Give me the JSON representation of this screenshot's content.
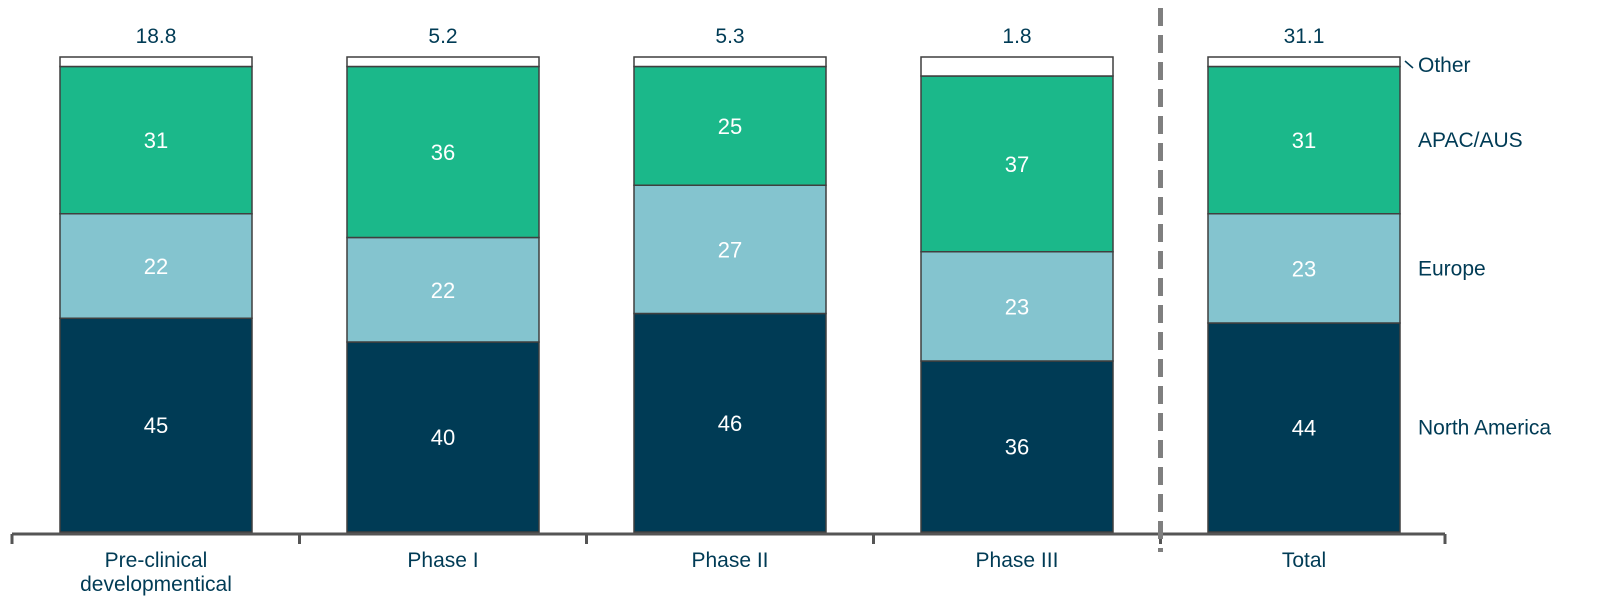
{
  "chart_data": {
    "type": "bar",
    "stacked": true,
    "normalized": true,
    "categories": [
      [
        "Pre-clinical",
        "developmentical"
      ],
      [
        "Phase I"
      ],
      [
        "Phase II"
      ],
      [
        "Phase III"
      ],
      [
        "Total"
      ]
    ],
    "totals": [
      "18.8",
      "5.2",
      "5.3",
      "1.8",
      "31.1"
    ],
    "series": [
      {
        "name": "North America",
        "color": "#003b55",
        "values": [
          45,
          40,
          46,
          36,
          44
        ]
      },
      {
        "name": "Europe",
        "color": "#84c4cf",
        "values": [
          22,
          22,
          27,
          23,
          23
        ]
      },
      {
        "name": "APAC/AUS",
        "color": "#1bb88a",
        "values": [
          31,
          36,
          25,
          37,
          31
        ]
      },
      {
        "name": "Other",
        "color": "#ffffff",
        "values": [
          2,
          2,
          2,
          4,
          2
        ]
      }
    ],
    "legend_position": "right",
    "separator_before_category": 4,
    "ylim": [
      0,
      100
    ]
  }
}
